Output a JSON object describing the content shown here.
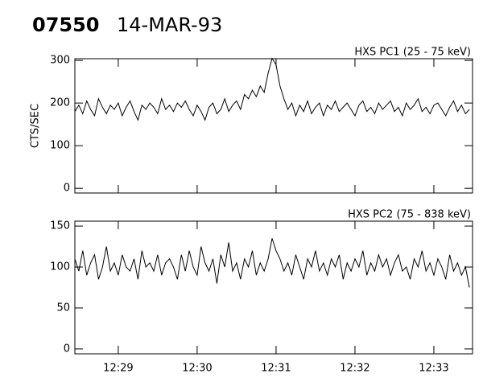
{
  "header": {
    "id": "07550",
    "date": "14-MAR-93"
  },
  "chart_data": [
    {
      "type": "line",
      "title": "HXS PC1 (25 - 75 keV)",
      "y_label": "CTS/SEC",
      "color": "#000000",
      "xlim": [
        28.45,
        33.49
      ],
      "xticks": [
        29,
        30,
        31,
        32,
        33
      ],
      "ylim": [
        -11,
        304
      ],
      "yticks": [
        0,
        100,
        200,
        300
      ],
      "grid": false,
      "x": [
        28.45,
        28.5,
        28.55,
        28.6,
        28.65,
        28.7,
        28.75,
        28.8,
        28.85,
        28.9,
        28.95,
        29.0,
        29.05,
        29.1,
        29.15,
        29.2,
        29.25,
        29.3,
        29.35,
        29.4,
        29.45,
        29.5,
        29.55,
        29.6,
        29.65,
        29.7,
        29.75,
        29.8,
        29.85,
        29.9,
        29.95,
        30.0,
        30.05,
        30.1,
        30.15,
        30.2,
        30.25,
        30.3,
        30.35,
        30.4,
        30.45,
        30.5,
        30.55,
        30.6,
        30.65,
        30.7,
        30.75,
        30.8,
        30.85,
        30.9,
        30.95,
        31.0,
        31.05,
        31.1,
        31.15,
        31.2,
        31.25,
        31.3,
        31.35,
        31.4,
        31.45,
        31.5,
        31.55,
        31.6,
        31.65,
        31.7,
        31.75,
        31.8,
        31.85,
        31.9,
        31.95,
        32.0,
        32.05,
        32.1,
        32.15,
        32.2,
        32.25,
        32.3,
        32.35,
        32.4,
        32.45,
        32.5,
        32.55,
        32.6,
        32.65,
        32.7,
        32.75,
        32.8,
        32.85,
        32.9,
        32.95,
        33.0,
        33.05,
        33.1,
        33.15,
        33.2,
        33.25,
        33.3,
        33.35,
        33.4,
        33.45
      ],
      "values": [
        180,
        195,
        175,
        205,
        185,
        170,
        210,
        190,
        175,
        195,
        185,
        200,
        170,
        190,
        205,
        180,
        160,
        195,
        185,
        200,
        190,
        175,
        210,
        185,
        195,
        180,
        200,
        190,
        205,
        185,
        170,
        195,
        180,
        160,
        190,
        200,
        175,
        185,
        210,
        180,
        195,
        205,
        185,
        220,
        210,
        230,
        215,
        240,
        225,
        270,
        305,
        290,
        240,
        210,
        185,
        200,
        170,
        195,
        180,
        205,
        175,
        190,
        200,
        170,
        195,
        185,
        205,
        180,
        190,
        200,
        185,
        170,
        195,
        205,
        180,
        190,
        175,
        200,
        185,
        195,
        205,
        180,
        190,
        170,
        200,
        185,
        195,
        210,
        180,
        190,
        175,
        195,
        200,
        185,
        170,
        190,
        205,
        180,
        195,
        175,
        185
      ]
    },
    {
      "type": "line",
      "title": "HXS PC2 (75 - 838 keV)",
      "color": "#000000",
      "xlim": [
        28.45,
        33.49
      ],
      "xticks": [
        {
          "value": 29,
          "label": "12:29"
        },
        {
          "value": 30,
          "label": "12:30"
        },
        {
          "value": 31,
          "label": "12:31"
        },
        {
          "value": 32,
          "label": "12:32"
        },
        {
          "value": 33,
          "label": "12:33"
        }
      ],
      "ylim": [
        -6,
        156
      ],
      "yticks": [
        0,
        50,
        100,
        150
      ],
      "grid": false,
      "x": [
        28.45,
        28.5,
        28.55,
        28.6,
        28.65,
        28.7,
        28.75,
        28.8,
        28.85,
        28.9,
        28.95,
        29.0,
        29.05,
        29.1,
        29.15,
        29.2,
        29.25,
        29.3,
        29.35,
        29.4,
        29.45,
        29.5,
        29.55,
        29.6,
        29.65,
        29.7,
        29.75,
        29.8,
        29.85,
        29.9,
        29.95,
        30.0,
        30.05,
        30.1,
        30.15,
        30.2,
        30.25,
        30.3,
        30.35,
        30.4,
        30.45,
        30.5,
        30.55,
        30.6,
        30.65,
        30.7,
        30.75,
        30.8,
        30.85,
        30.9,
        30.95,
        31.0,
        31.05,
        31.1,
        31.15,
        31.2,
        31.25,
        31.3,
        31.35,
        31.4,
        31.45,
        31.5,
        31.55,
        31.6,
        31.65,
        31.7,
        31.75,
        31.8,
        31.85,
        31.9,
        31.95,
        32.0,
        32.05,
        32.1,
        32.15,
        32.2,
        32.25,
        32.3,
        32.35,
        32.4,
        32.45,
        32.5,
        32.55,
        32.6,
        32.65,
        32.7,
        32.75,
        32.8,
        32.85,
        32.9,
        32.95,
        33.0,
        33.05,
        33.1,
        33.15,
        33.2,
        33.25,
        33.3,
        33.35,
        33.4,
        33.45
      ],
      "values": [
        110,
        95,
        120,
        90,
        105,
        115,
        85,
        100,
        125,
        95,
        105,
        90,
        115,
        100,
        95,
        110,
        85,
        120,
        100,
        105,
        95,
        115,
        90,
        105,
        110,
        100,
        85,
        115,
        95,
        120,
        100,
        90,
        125,
        105,
        95,
        110,
        80,
        115,
        100,
        130,
        95,
        105,
        85,
        110,
        100,
        120,
        90,
        105,
        95,
        110,
        135,
        120,
        110,
        95,
        105,
        90,
        115,
        100,
        85,
        110,
        100,
        120,
        95,
        105,
        90,
        110,
        100,
        115,
        85,
        105,
        95,
        110,
        100,
        120,
        90,
        105,
        95,
        115,
        100,
        110,
        90,
        105,
        115,
        95,
        100,
        85,
        110,
        100,
        120,
        95,
        105,
        90,
        110,
        100,
        85,
        115,
        95,
        105,
        90,
        100,
        75
      ]
    }
  ]
}
